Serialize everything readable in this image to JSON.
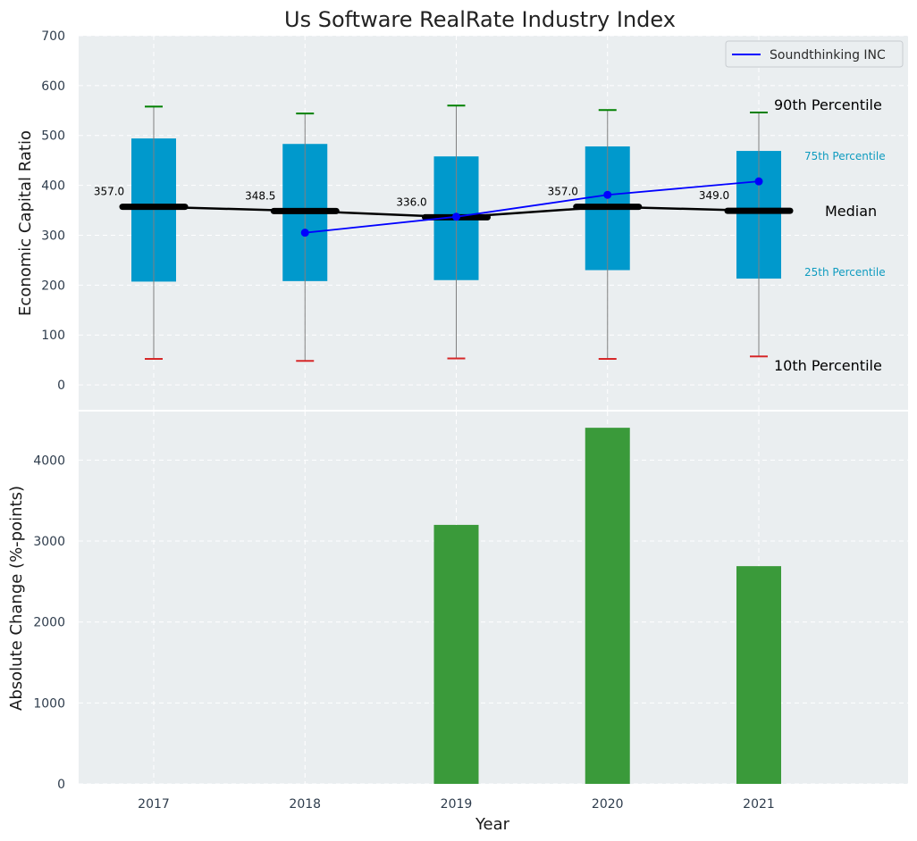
{
  "chart_data": [
    {
      "type": "box",
      "title": "Us Software RealRate Industry Index",
      "ylabel": "Economic Capital Ratio",
      "xlabel": "",
      "ylim": [
        -50,
        700
      ],
      "yticks": [
        0,
        100,
        200,
        300,
        400,
        500,
        600,
        700
      ],
      "grid": true,
      "legend_position": "top-right",
      "categories": [
        "2017",
        "2018",
        "2019",
        "2020",
        "2021"
      ],
      "p10": [
        52,
        48,
        53,
        52,
        57
      ],
      "p25": [
        207,
        208,
        210,
        230,
        213
      ],
      "median": [
        357,
        348.5,
        336,
        357,
        349
      ],
      "p75": [
        494,
        483,
        458,
        478,
        469
      ],
      "p90": [
        558,
        544,
        560,
        551,
        546
      ],
      "median_labels": [
        "357.0",
        "348.5",
        "336.0",
        "357.0",
        "349.0"
      ],
      "series": [
        {
          "name": "Soundthinking INC",
          "values": [
            null,
            305,
            337,
            381,
            408
          ]
        }
      ],
      "annotations": {
        "p90": "90th Percentile",
        "p75": "75th Percentile",
        "median": "Median",
        "p25": "25th Percentile",
        "p10": "10th Percentile"
      }
    },
    {
      "type": "bar",
      "xlabel": "Year",
      "ylabel": "Absolute Change (%-points)",
      "ylim": [
        0,
        4600
      ],
      "yticks": [
        0,
        1000,
        2000,
        3000,
        4000
      ],
      "grid": true,
      "categories": [
        "2017",
        "2018",
        "2019",
        "2020",
        "2021"
      ],
      "values": [
        null,
        null,
        3200,
        4400,
        2690
      ]
    }
  ],
  "colors": {
    "box_fill": "#0099cc",
    "median_line": "#000000",
    "company_line": "#0000ff",
    "p90_cap": "#008000",
    "p10_cap": "#d62728",
    "whisker": "#808080",
    "bar_fill": "#3a9a3a",
    "panel_bg": "#eaeef0",
    "pct_small_text": "#0e9bbf"
  }
}
